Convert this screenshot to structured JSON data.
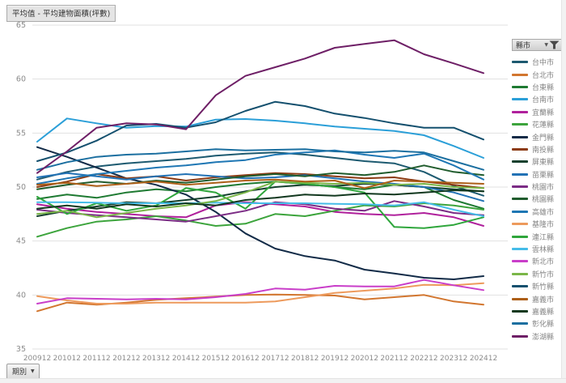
{
  "title_chip": "平均值 - 平均建物面積(坪數)",
  "legend": {
    "header": "縣市"
  },
  "period_selector": {
    "label": "期別"
  },
  "chart_data": {
    "type": "line",
    "title": "平均值 - 平均建物面積(坪數)",
    "xlabel": "期別",
    "ylabel": "平均建物面積(坪數)",
    "ylim": [
      35,
      65
    ],
    "yticks": [
      35,
      40,
      45,
      50,
      55,
      60,
      65
    ],
    "grid": "horizontal",
    "legend_position": "right",
    "legend_title": "縣市",
    "x": [
      "200912",
      "201012",
      "201112",
      "201212",
      "201312",
      "201412",
      "201512",
      "201612",
      "201712",
      "201812",
      "201912",
      "202012",
      "202112",
      "202212",
      "202312",
      "202412"
    ],
    "series": [
      {
        "name": "台中市",
        "color": "#1d5a70",
        "values": [
          50.7,
          51.4,
          51.9,
          52.2,
          52.4,
          52.6,
          52.9,
          53.1,
          53.2,
          53.0,
          52.7,
          52.4,
          52.2,
          51.4,
          50.1,
          49.2
        ]
      },
      {
        "name": "台北市",
        "color": "#d2762f",
        "values": [
          38.5,
          39.3,
          39.1,
          39.3,
          39.55,
          39.7,
          39.85,
          40.0,
          40.05,
          40.0,
          39.95,
          39.6,
          39.8,
          40.0,
          39.4,
          39.1
        ]
      },
      {
        "name": "台東縣",
        "color": "#1e7a32",
        "values": [
          48.9,
          49.3,
          49.0,
          49.5,
          49.8,
          49.6,
          50.0,
          50.3,
          50.5,
          50.3,
          50.0,
          49.8,
          50.2,
          50.0,
          48.8,
          48.0
        ]
      },
      {
        "name": "台南市",
        "color": "#2b9fd8",
        "values": [
          54.2,
          56.35,
          55.9,
          55.5,
          55.65,
          55.6,
          56.25,
          56.3,
          56.15,
          55.9,
          55.6,
          55.4,
          55.2,
          54.8,
          53.8,
          52.7
        ]
      },
      {
        "name": "宜蘭縣",
        "color": "#b0219c",
        "values": [
          48.4,
          48.0,
          47.7,
          47.5,
          47.3,
          47.2,
          48.3,
          48.6,
          48.4,
          48.2,
          47.7,
          47.5,
          47.4,
          47.6,
          47.2,
          46.4
        ]
      },
      {
        "name": "花蓮縣",
        "color": "#3ca43c",
        "values": [
          45.4,
          46.2,
          46.8,
          47.0,
          47.3,
          46.9,
          46.4,
          46.6,
          47.5,
          47.3,
          47.8,
          48.3,
          48.2,
          48.5,
          48.3,
          47.9
        ]
      },
      {
        "name": "金門縣",
        "color": "#122b47",
        "values": [
          53.7,
          52.8,
          51.8,
          50.8,
          50.2,
          49.3,
          47.7,
          45.7,
          44.3,
          43.6,
          43.2,
          42.35,
          42.0,
          41.6,
          41.45,
          41.75
        ]
      },
      {
        "name": "南投縣",
        "color": "#8c3b13",
        "values": [
          50.0,
          50.5,
          51.2,
          50.8,
          51.0,
          50.6,
          50.9,
          51.1,
          51.3,
          51.2,
          51.0,
          50.8,
          50.9,
          50.5,
          50.2,
          49.9
        ]
      },
      {
        "name": "屏東縣",
        "color": "#14402e",
        "values": [
          47.3,
          47.8,
          48.2,
          48.6,
          48.5,
          48.8,
          49.1,
          49.6,
          50.0,
          50.2,
          50.1,
          50.3,
          50.2,
          50.0,
          49.8,
          49.6
        ]
      },
      {
        "name": "苗栗縣",
        "color": "#2272b5",
        "values": [
          50.9,
          51.3,
          51.0,
          50.7,
          51.0,
          51.2,
          51.0,
          50.8,
          50.9,
          51.1,
          50.8,
          50.5,
          50.3,
          50.0,
          49.5,
          48.7
        ]
      },
      {
        "name": "桃園市",
        "color": "#7b2c85",
        "values": [
          47.9,
          47.6,
          47.4,
          47.2,
          47.0,
          46.8,
          47.3,
          47.8,
          48.6,
          48.4,
          48.0,
          47.8,
          48.7,
          48.2,
          47.6,
          47.4
        ]
      },
      {
        "name": "桃園縣",
        "color": "#205c2d",
        "values": [
          49.8,
          50.2,
          50.5,
          50.3,
          50.6,
          50.4,
          50.7,
          51.0,
          51.2,
          51.0,
          51.3,
          51.1,
          51.4,
          52.0,
          51.4,
          51.1
        ]
      },
      {
        "name": "高雄市",
        "color": "#1f77b4",
        "values": [
          50.3,
          50.8,
          51.2,
          51.5,
          51.8,
          52.0,
          52.3,
          52.5,
          53.0,
          53.2,
          53.4,
          53.0,
          52.7,
          53.1,
          52.0,
          50.7
        ]
      },
      {
        "name": "基隆市",
        "color": "#ed9a5c",
        "values": [
          39.9,
          39.5,
          39.2,
          39.2,
          39.3,
          39.3,
          39.3,
          39.3,
          39.4,
          39.8,
          40.2,
          40.4,
          40.6,
          40.95,
          40.9,
          41.1
        ]
      },
      {
        "name": "連江縣",
        "color": "#2fa63c",
        "values": [
          49.1,
          47.5,
          48.5,
          47.8,
          48.3,
          49.9,
          49.5,
          48.0,
          50.5,
          50.3,
          50.0,
          49.5,
          46.3,
          46.2,
          46.5,
          47.2
        ]
      },
      {
        "name": "雲林縣",
        "color": "#45bce8",
        "values": [
          48.6,
          48.6,
          48.55,
          48.5,
          48.5,
          48.5,
          48.55,
          48.5,
          48.5,
          48.5,
          48.45,
          48.4,
          48.3,
          48.6,
          47.9,
          47.3
        ]
      },
      {
        "name": "新北市",
        "color": "#c93ec9",
        "values": [
          39.2,
          39.7,
          39.65,
          39.6,
          39.65,
          39.6,
          39.8,
          40.1,
          40.6,
          40.5,
          40.85,
          40.8,
          40.8,
          41.4,
          40.9,
          40.45
        ]
      },
      {
        "name": "新竹市",
        "color": "#7ab648",
        "values": [
          47.5,
          47.8,
          47.2,
          47.6,
          48.0,
          48.3,
          48.7,
          49.5,
          50.5,
          50.4,
          50.3,
          50.4,
          50.2,
          50.3,
          50.0,
          49.9
        ]
      },
      {
        "name": "新竹縣",
        "color": "#14506e",
        "values": [
          52.4,
          53.2,
          54.3,
          55.7,
          55.85,
          55.5,
          56.0,
          57.05,
          57.9,
          57.5,
          56.8,
          56.4,
          55.9,
          55.5,
          55.5,
          54.4
        ]
      },
      {
        "name": "嘉義市",
        "color": "#ad5f18",
        "values": [
          50.2,
          50.4,
          50.1,
          50.3,
          50.5,
          50.2,
          50.4,
          50.6,
          50.7,
          50.5,
          50.6,
          49.9,
          50.6,
          50.5,
          50.4,
          50.3
        ]
      },
      {
        "name": "嘉義縣",
        "color": "#12381f",
        "values": [
          48.0,
          48.3,
          48.0,
          48.4,
          48.2,
          48.5,
          48.3,
          48.8,
          49.0,
          49.3,
          49.2,
          49.4,
          49.3,
          49.5,
          49.7,
          49.6
        ]
      },
      {
        "name": "彰化縣",
        "color": "#1b6fa0",
        "values": [
          51.6,
          52.3,
          52.8,
          53.0,
          53.1,
          53.3,
          53.5,
          53.4,
          53.45,
          53.5,
          53.3,
          53.2,
          53.35,
          53.2,
          52.4,
          51.6
        ]
      },
      {
        "name": "澎湖縣",
        "color": "#6e1f66",
        "values": [
          51.3,
          53.3,
          55.5,
          55.9,
          55.8,
          55.35,
          58.5,
          60.3,
          61.1,
          61.9,
          62.9,
          63.25,
          63.6,
          62.3,
          61.45,
          60.55
        ]
      }
    ]
  }
}
